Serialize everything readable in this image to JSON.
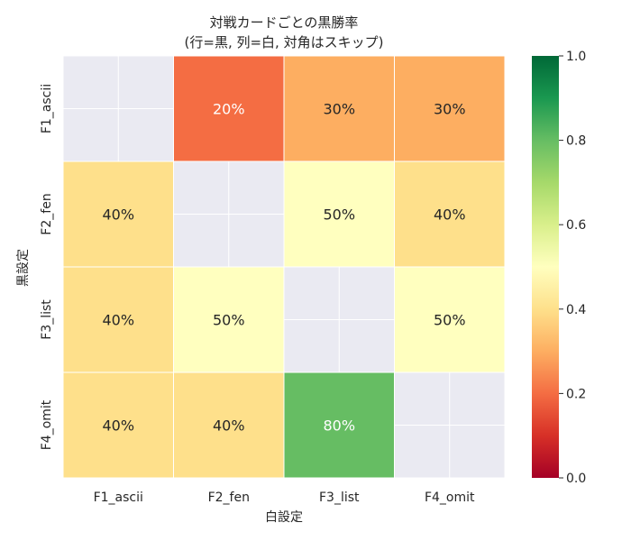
{
  "chart_data": {
    "type": "heatmap",
    "title": [
      "対戦カードごとの黒勝率",
      "(行=黒, 列=白, 対角はスキップ)"
    ],
    "xlabel": "白設定",
    "ylabel": "黒設定",
    "x_categories": [
      "F1_ascii",
      "F2_fen",
      "F3_list",
      "F4_omit"
    ],
    "y_categories": [
      "F1_ascii",
      "F2_fen",
      "F3_list",
      "F4_omit"
    ],
    "values": [
      [
        null,
        0.2,
        0.3,
        0.3
      ],
      [
        0.4,
        null,
        0.5,
        0.4
      ],
      [
        0.4,
        0.5,
        null,
        0.5
      ],
      [
        0.4,
        0.4,
        0.8,
        null
      ]
    ],
    "labels": [
      [
        null,
        "20%",
        "30%",
        "30%"
      ],
      [
        "40%",
        null,
        "50%",
        "40%"
      ],
      [
        "40%",
        "50%",
        null,
        "50%"
      ],
      [
        "40%",
        "40%",
        "80%",
        null
      ]
    ],
    "colormap": "RdYlGn",
    "vmin": 0.0,
    "vmax": 1.0,
    "colorbar_ticks": [
      "0.0",
      "0.2",
      "0.4",
      "0.6",
      "0.8",
      "1.0"
    ],
    "masked_color": "#eaeaf2"
  }
}
